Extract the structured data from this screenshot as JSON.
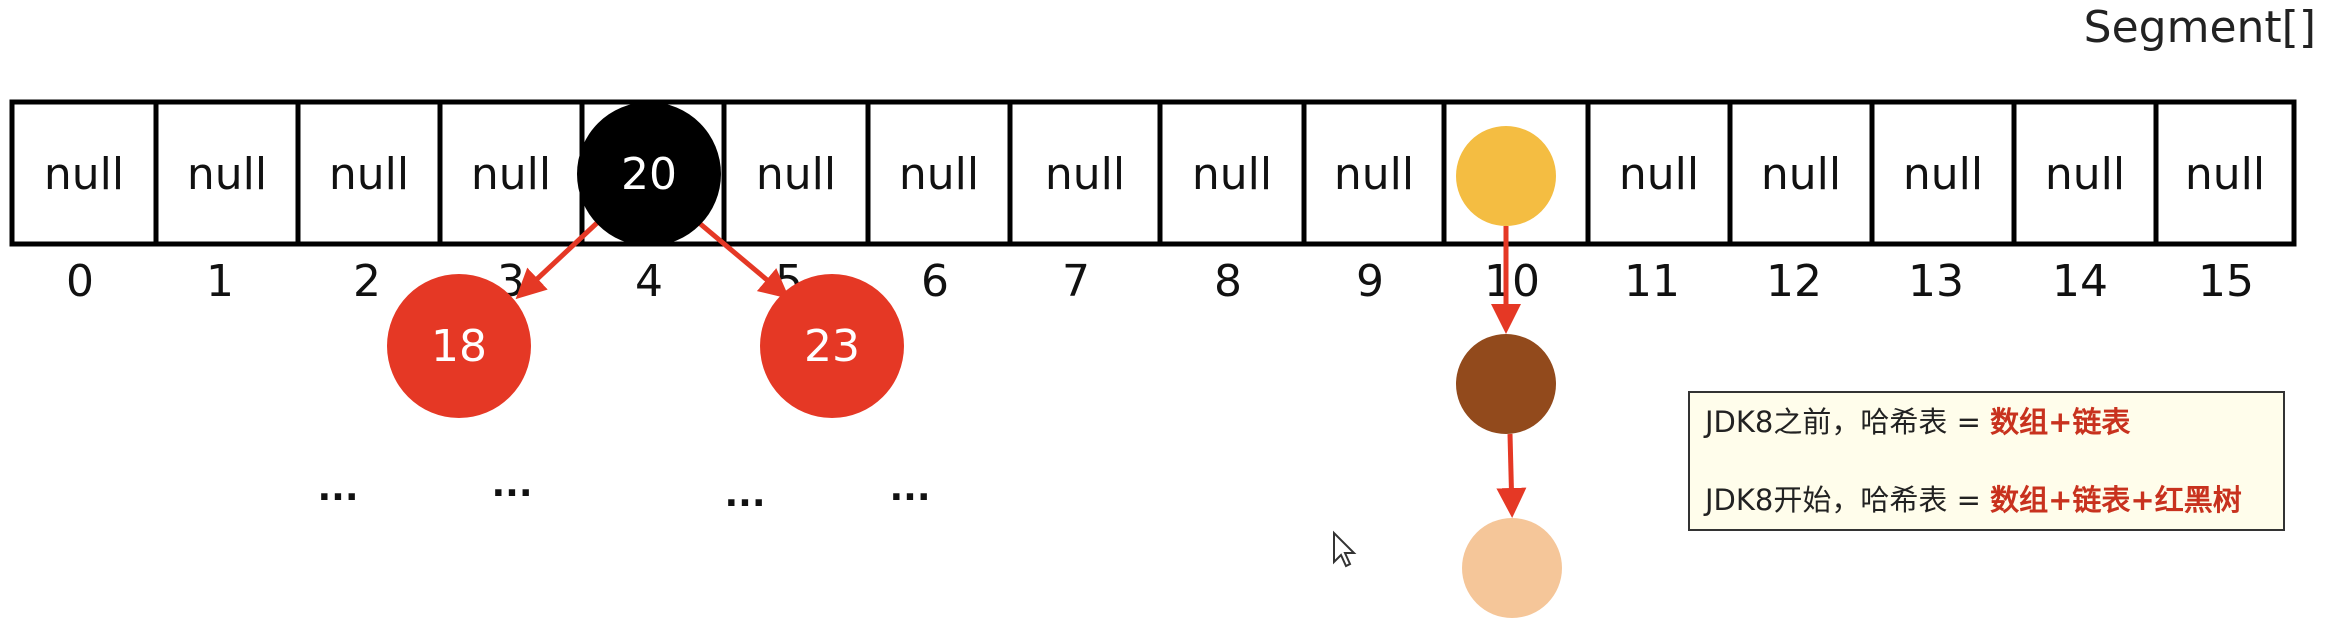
{
  "title": "Segment[]",
  "cells": [
    "null",
    "null",
    "null",
    "null",
    "",
    "null",
    "null",
    "null",
    "null",
    "null",
    "",
    "null",
    "null",
    "null",
    "null",
    "null"
  ],
  "indices": [
    "0",
    "1",
    "2",
    "3",
    "4",
    "5",
    "6",
    "7",
    "8",
    "9",
    "10",
    "11",
    "12",
    "13",
    "14",
    "15"
  ],
  "tree": {
    "root": "20",
    "left": "18",
    "right": "23",
    "ellipses": [
      "...",
      "...",
      "...",
      "..."
    ]
  },
  "note": {
    "line1_prefix": "JDK8之前，哈希表 = ",
    "line1_bold": "数组+链表",
    "line2_prefix": "JDK8开始，哈希表 = ",
    "line2_bold": "数组+链表+红黑树"
  },
  "colors": {
    "root_node": "#000000",
    "child_node": "#e53825",
    "arrow": "#e53825",
    "list_node_1": "#f4bd42",
    "list_node_2": "#924a1c",
    "list_node_3": "#f5c699",
    "note_highlight": "#c8321e",
    "note_background": "#fffdeb"
  }
}
